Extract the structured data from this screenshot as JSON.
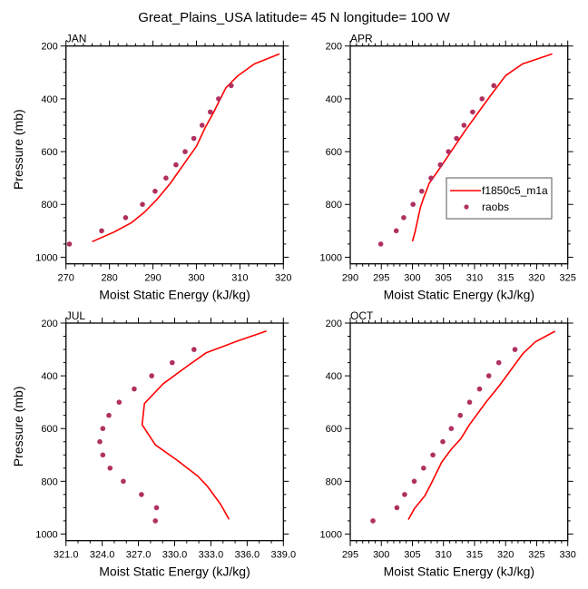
{
  "title": "Great_Plains_USA  latitude= 45 N longitude= 100 W",
  "colors": {
    "model": "#ff0000",
    "obs": "#b03060"
  },
  "legend": {
    "panel": "APR",
    "entries": [
      {
        "label": "f1850c5_m1a",
        "type": "line"
      },
      {
        "label": "raobs",
        "type": "marker"
      }
    ]
  },
  "chart_data": [
    {
      "type": "line",
      "panel": "JAN",
      "title": "JAN",
      "xlabel": "Moist Static Energy (kJ/kg)",
      "ylabel": "Pressure (mb)",
      "xlim": [
        270,
        320
      ],
      "ylim": [
        200,
        1025
      ],
      "y_inverted": true,
      "xticks": [
        270,
        280,
        290,
        300,
        310,
        320
      ],
      "xtick_labels": [
        "270",
        "280",
        "290",
        "300",
        "310",
        "320"
      ],
      "x_minor_step": 2,
      "yticks": [
        200,
        400,
        600,
        800,
        1000
      ],
      "ytick_labels": [
        "200",
        "400",
        "600",
        "800",
        "1000"
      ],
      "y_minor_step": 50,
      "grid": false,
      "series": [
        {
          "name": "f1850c5_m1a",
          "style": "line",
          "x": [
            276.0,
            281.0,
            285.0,
            288.0,
            291.0,
            294.0,
            297.0,
            300.0,
            302.0,
            304.0,
            305.5,
            306.8,
            309.5,
            313.3,
            319.1
          ],
          "y": [
            941,
            905,
            870,
            830,
            780,
            720,
            650,
            580,
            510,
            450,
            400,
            358,
            313,
            268,
            230
          ]
        },
        {
          "name": "raobs",
          "style": "markers",
          "x": [
            270.8,
            278.2,
            283.7,
            287.6,
            290.5,
            293.0,
            295.3,
            297.4,
            299.4,
            301.3,
            303.2,
            305.1,
            308.0
          ],
          "y": [
            950,
            900,
            850,
            800,
            750,
            700,
            650,
            600,
            550,
            500,
            450,
            400,
            350
          ]
        }
      ]
    },
    {
      "type": "line",
      "panel": "APR",
      "title": "APR",
      "xlabel": "Moist Static Energy (kJ/kg)",
      "ylabel": "",
      "xlim": [
        290,
        325
      ],
      "ylim": [
        200,
        1025
      ],
      "y_inverted": true,
      "xticks": [
        290,
        295,
        300,
        305,
        310,
        315,
        320,
        325
      ],
      "xtick_labels": [
        "290",
        "295",
        "300",
        "305",
        "310",
        "315",
        "320",
        "325"
      ],
      "x_minor_step": 1,
      "yticks": [
        200,
        400,
        600,
        800,
        1000
      ],
      "ytick_labels": [
        "200",
        "400",
        "600",
        "800",
        "1000"
      ],
      "y_minor_step": 50,
      "grid": false,
      "legend": "middle-right",
      "series": [
        {
          "name": "f1850c5_m1a",
          "style": "line",
          "x": [
            300.0,
            300.4,
            301.3,
            301.8,
            302.7,
            304.5,
            306.5,
            308.5,
            310.5,
            312.5,
            315.0,
            317.7,
            322.5
          ],
          "y": [
            940,
            907,
            810,
            776,
            720,
            660,
            590,
            520,
            455,
            390,
            312,
            268,
            230
          ]
        },
        {
          "name": "raobs",
          "style": "markers",
          "x": [
            294.9,
            297.4,
            298.6,
            300.1,
            301.5,
            303.0,
            304.5,
            305.8,
            307.1,
            308.3,
            309.7,
            311.2,
            313.1
          ],
          "y": [
            950,
            900,
            850,
            800,
            750,
            700,
            650,
            600,
            550,
            500,
            450,
            400,
            350
          ]
        }
      ]
    },
    {
      "type": "line",
      "panel": "JUL",
      "title": "JUL",
      "xlabel": "Moist Static Energy (kJ/kg)",
      "ylabel": "Pressure (mb)",
      "xlim": [
        321,
        339
      ],
      "ylim": [
        200,
        1025
      ],
      "y_inverted": true,
      "xticks": [
        321,
        324,
        327,
        330,
        333,
        336,
        339
      ],
      "xtick_labels": [
        "321.0",
        "324.0",
        "327.0",
        "330.0",
        "333.0",
        "336.0",
        "339.0"
      ],
      "x_minor_step": 1,
      "yticks": [
        200,
        400,
        600,
        800,
        1000
      ],
      "ytick_labels": [
        "200",
        "400",
        "600",
        "800",
        "1000"
      ],
      "y_minor_step": 50,
      "grid": false,
      "series": [
        {
          "name": "f1850c5_m1a",
          "style": "line",
          "x": [
            334.5,
            333.8,
            332.7,
            331.9,
            330.2,
            328.4,
            327.3,
            327.5,
            329.05,
            331.0,
            332.6,
            335.2,
            337.6
          ],
          "y": [
            944,
            887,
            818,
            780,
            720,
            662,
            585,
            505,
            430,
            365,
            313,
            268,
            230
          ]
        },
        {
          "name": "raobs",
          "style": "markers",
          "x": [
            328.4,
            328.5,
            327.25,
            325.75,
            324.65,
            324.05,
            323.8,
            324.05,
            324.55,
            325.4,
            326.65,
            328.1,
            329.8,
            331.6
          ],
          "y": [
            950,
            900,
            850,
            800,
            750,
            700,
            650,
            600,
            550,
            500,
            450,
            400,
            350,
            300
          ]
        }
      ]
    },
    {
      "type": "line",
      "panel": "OCT",
      "title": "OCT",
      "xlabel": "Moist Static Energy (kJ/kg)",
      "ylabel": "",
      "xlim": [
        295,
        330
      ],
      "ylim": [
        200,
        1025
      ],
      "y_inverted": true,
      "xticks": [
        295,
        300,
        305,
        310,
        315,
        320,
        325,
        330
      ],
      "xtick_labels": [
        "295",
        "300",
        "305",
        "310",
        "315",
        "320",
        "325",
        "330"
      ],
      "x_minor_step": 1,
      "yticks": [
        200,
        400,
        600,
        800,
        1000
      ],
      "ytick_labels": [
        "200",
        "400",
        "600",
        "800",
        "1000"
      ],
      "y_minor_step": 50,
      "grid": false,
      "series": [
        {
          "name": "f1850c5_m1a",
          "style": "line",
          "x": [
            304.35,
            305.3,
            307.0,
            308.0,
            309.7,
            311.2,
            312.8,
            314.15,
            316.9,
            319.0,
            322.8,
            324.8,
            327.95
          ],
          "y": [
            945,
            905,
            855,
            810,
            728,
            680,
            638,
            586,
            498,
            437,
            315,
            271,
            231
          ]
        },
        {
          "name": "raobs",
          "style": "markers",
          "x": [
            298.65,
            302.5,
            303.75,
            305.3,
            306.8,
            308.3,
            309.9,
            311.25,
            312.7,
            314.2,
            315.8,
            317.3,
            318.9,
            321.5
          ],
          "y": [
            950,
            900,
            850,
            800,
            750,
            700,
            650,
            600,
            550,
            500,
            450,
            400,
            350,
            300
          ]
        }
      ]
    }
  ]
}
